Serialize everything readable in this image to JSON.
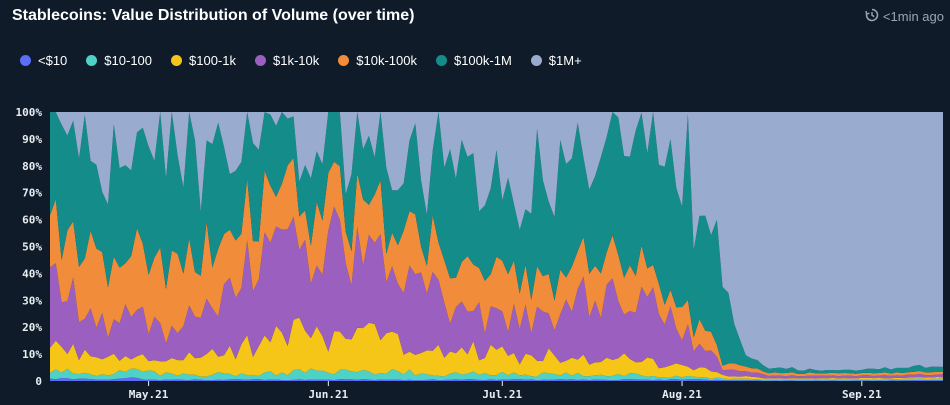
{
  "header": {
    "title": "Stablecoins: Value Distribution of Volume (over time)",
    "updated": "<1min ago",
    "refresh_icon": "refresh-clock-icon"
  },
  "colors": {
    "background": "#0f1b28",
    "text": "#ffffff",
    "muted": "#9aa6b2"
  },
  "chart_data": {
    "type": "area",
    "stacked": true,
    "normalized": true,
    "title": "Stablecoins: Value Distribution of Volume (over time)",
    "xlabel": "",
    "ylabel": "",
    "ylim": [
      0,
      100
    ],
    "yticks": [
      "0",
      "10%",
      "20%",
      "30%",
      "40%",
      "50%",
      "60%",
      "70%",
      "80%",
      "90%",
      "100%"
    ],
    "xticks": [
      {
        "label": "May.21",
        "day": 17
      },
      {
        "label": "Jun.21",
        "day": 48
      },
      {
        "label": "Jul.21",
        "day": 78
      },
      {
        "label": "Aug.21",
        "day": 109
      },
      {
        "label": "Sep.21",
        "day": 140
      }
    ],
    "x_domain": [
      0,
      154
    ],
    "legend_position": "top-left",
    "series": [
      {
        "name": "<$10",
        "color": "#5b6ef5"
      },
      {
        "name": "$10-100",
        "color": "#4fd1c5"
      },
      {
        "name": "$100-1k",
        "color": "#f5c518"
      },
      {
        "name": "$1k-10k",
        "color": "#9b5fc0"
      },
      {
        "name": "$10k-100k",
        "color": "#f08c3a"
      },
      {
        "name": "$100k-1M",
        "color": "#138c8a"
      },
      {
        "name": "$1M+",
        "color": "#9aabd0"
      }
    ],
    "anchors": {
      "days": [
        0,
        8,
        14,
        20,
        28,
        36,
        44,
        52,
        60,
        68,
        76,
        84,
        92,
        100,
        106,
        112,
        116,
        120,
        124,
        130,
        136,
        142,
        148,
        154
      ],
      "<$10": [
        1,
        0.5,
        1,
        0.5,
        0.5,
        0.5,
        0.5,
        0.5,
        0.5,
        0.5,
        0.5,
        0.5,
        0.5,
        0.5,
        0.5,
        0.5,
        0.3,
        0.3,
        0.2,
        0.2,
        0.2,
        0.2,
        0.3,
        0.3
      ],
      "$10-100": [
        3,
        2,
        3,
        2,
        2,
        2,
        3,
        3,
        3,
        2,
        2,
        2,
        2,
        2,
        1,
        1,
        0.5,
        0.5,
        0.3,
        0.3,
        0.3,
        0.3,
        0.5,
        0.5
      ],
      "$100-1k": [
        10,
        6,
        6,
        5,
        7,
        12,
        16,
        14,
        12,
        8,
        8,
        7,
        6,
        6,
        4,
        3,
        1,
        1,
        0.5,
        0.5,
        0.5,
        0.5,
        0.5,
        0.5
      ],
      "$1k-10k": [
        25,
        12,
        14,
        12,
        18,
        28,
        34,
        36,
        30,
        18,
        16,
        14,
        20,
        22,
        18,
        10,
        3,
        2,
        1,
        1,
        1,
        1,
        1,
        1
      ],
      "$10k-100k": [
        20,
        25,
        20,
        26,
        24,
        20,
        18,
        20,
        18,
        16,
        16,
        14,
        12,
        12,
        10,
        8,
        3,
        2,
        1,
        1,
        1,
        1,
        1,
        1
      ],
      "$100k-1M": [
        40,
        40,
        35,
        40,
        34,
        25,
        20,
        20,
        26,
        36,
        34,
        38,
        36,
        36,
        50,
        48,
        30,
        4,
        2,
        1.5,
        1,
        1.5,
        2,
        2
      ]
    }
  }
}
